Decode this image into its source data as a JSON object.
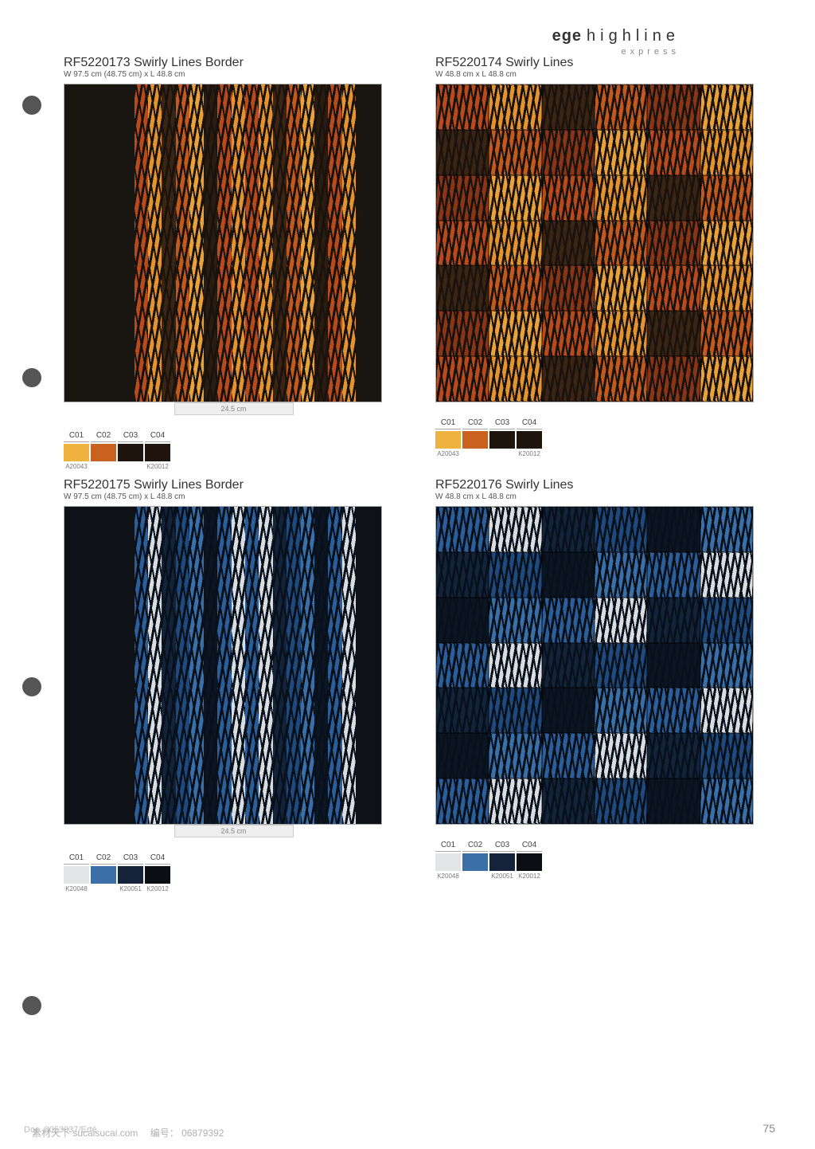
{
  "brand": {
    "ege": "ege",
    "highline": "highline",
    "express": "express"
  },
  "holes": [
    120,
    462,
    850,
    1250
  ],
  "products": [
    {
      "code": "RF5220173",
      "name": "Swirly Lines Border",
      "dim": "W 97.5 cm (48.75 cm)  x  L 48.8 cm",
      "scale": "24.5 cm",
      "pattern_type": "stripe_border",
      "border_color": "#1a1612",
      "stripe_colors": [
        "#b84b1e",
        "#e4942f",
        "#3a2515",
        "#c2591f",
        "#e9a23a",
        "#2b1c12",
        "#b84b1e",
        "#e4942f"
      ],
      "wavy_overlay": "#1a120c",
      "swatch_bg": "#1a1612",
      "color_table": {
        "headers": [
          "C01",
          "C02",
          "C03",
          "C04"
        ],
        "chips": [
          "#efb23f",
          "#c9611f",
          "#20150e",
          "#20150e"
        ],
        "codes": [
          "A20043",
          "",
          "",
          "K20012"
        ]
      }
    },
    {
      "code": "RF5220174",
      "name": "Swirly Lines",
      "dim": "W 48.8 cm x  L 48.8 cm",
      "scale": "",
      "pattern_type": "tiles",
      "tile_rows": 7,
      "tile_cols": 6,
      "tile_colors": [
        "#b84b1e",
        "#e4942f",
        "#3a2515",
        "#c2591f",
        "#8a3518",
        "#e9a23a"
      ],
      "wavy_overlay": "#1a120c",
      "swatch_bg": "#b84b1e",
      "color_table": {
        "headers": [
          "C01",
          "C02",
          "C03",
          "C04"
        ],
        "chips": [
          "#efb23f",
          "#c9611f",
          "#20150e",
          "#20150e"
        ],
        "codes": [
          "A20043",
          "",
          "",
          "K20012"
        ]
      }
    },
    {
      "code": "RF5220175",
      "name": "Swirly Lines Border",
      "dim": "W 97.5 cm (48.75 cm)  x  L 48.8 cm",
      "scale": "24.5 cm",
      "pattern_type": "stripe_border",
      "border_color": "#0e1116",
      "stripe_colors": [
        "#2c5e9a",
        "#d9dde0",
        "#12233a",
        "#1f4a7d",
        "#3a6fa8",
        "#0c1522",
        "#2c5e9a",
        "#d9dde0"
      ],
      "wavy_overlay": "#07101b",
      "swatch_bg": "#0e1116",
      "color_table": {
        "headers": [
          "C01",
          "C02",
          "C03",
          "C04"
        ],
        "chips": [
          "#e2e4e5",
          "#3a6fa8",
          "#14233a",
          "#0b0e13"
        ],
        "codes": [
          "K20048",
          "",
          "K20051",
          "K20012"
        ]
      }
    },
    {
      "code": "RF5220176",
      "name": "Swirly Lines",
      "dim": "W 48.8 cm x  L 48.8 cm",
      "scale": "",
      "pattern_type": "tiles",
      "tile_rows": 7,
      "tile_cols": 6,
      "tile_colors": [
        "#2c5e9a",
        "#d9dde0",
        "#12233a",
        "#1f4a7d",
        "#0c1522",
        "#3a6fa8"
      ],
      "wavy_overlay": "#07101b",
      "swatch_bg": "#12233a",
      "color_table": {
        "headers": [
          "C01",
          "C02",
          "C03",
          "C04"
        ],
        "chips": [
          "#e2e4e5",
          "#3a6fa8",
          "#14233a",
          "#0b0e13"
        ],
        "codes": [
          "K20048",
          "",
          "K20051",
          "K20012"
        ]
      }
    }
  ],
  "footer": {
    "doc": "Doc. 8053037/Erté",
    "page": "75",
    "watermark_site": "素材天下 sucaisucai.com",
    "watermark_label": "编号：",
    "watermark_code": "06879392"
  }
}
